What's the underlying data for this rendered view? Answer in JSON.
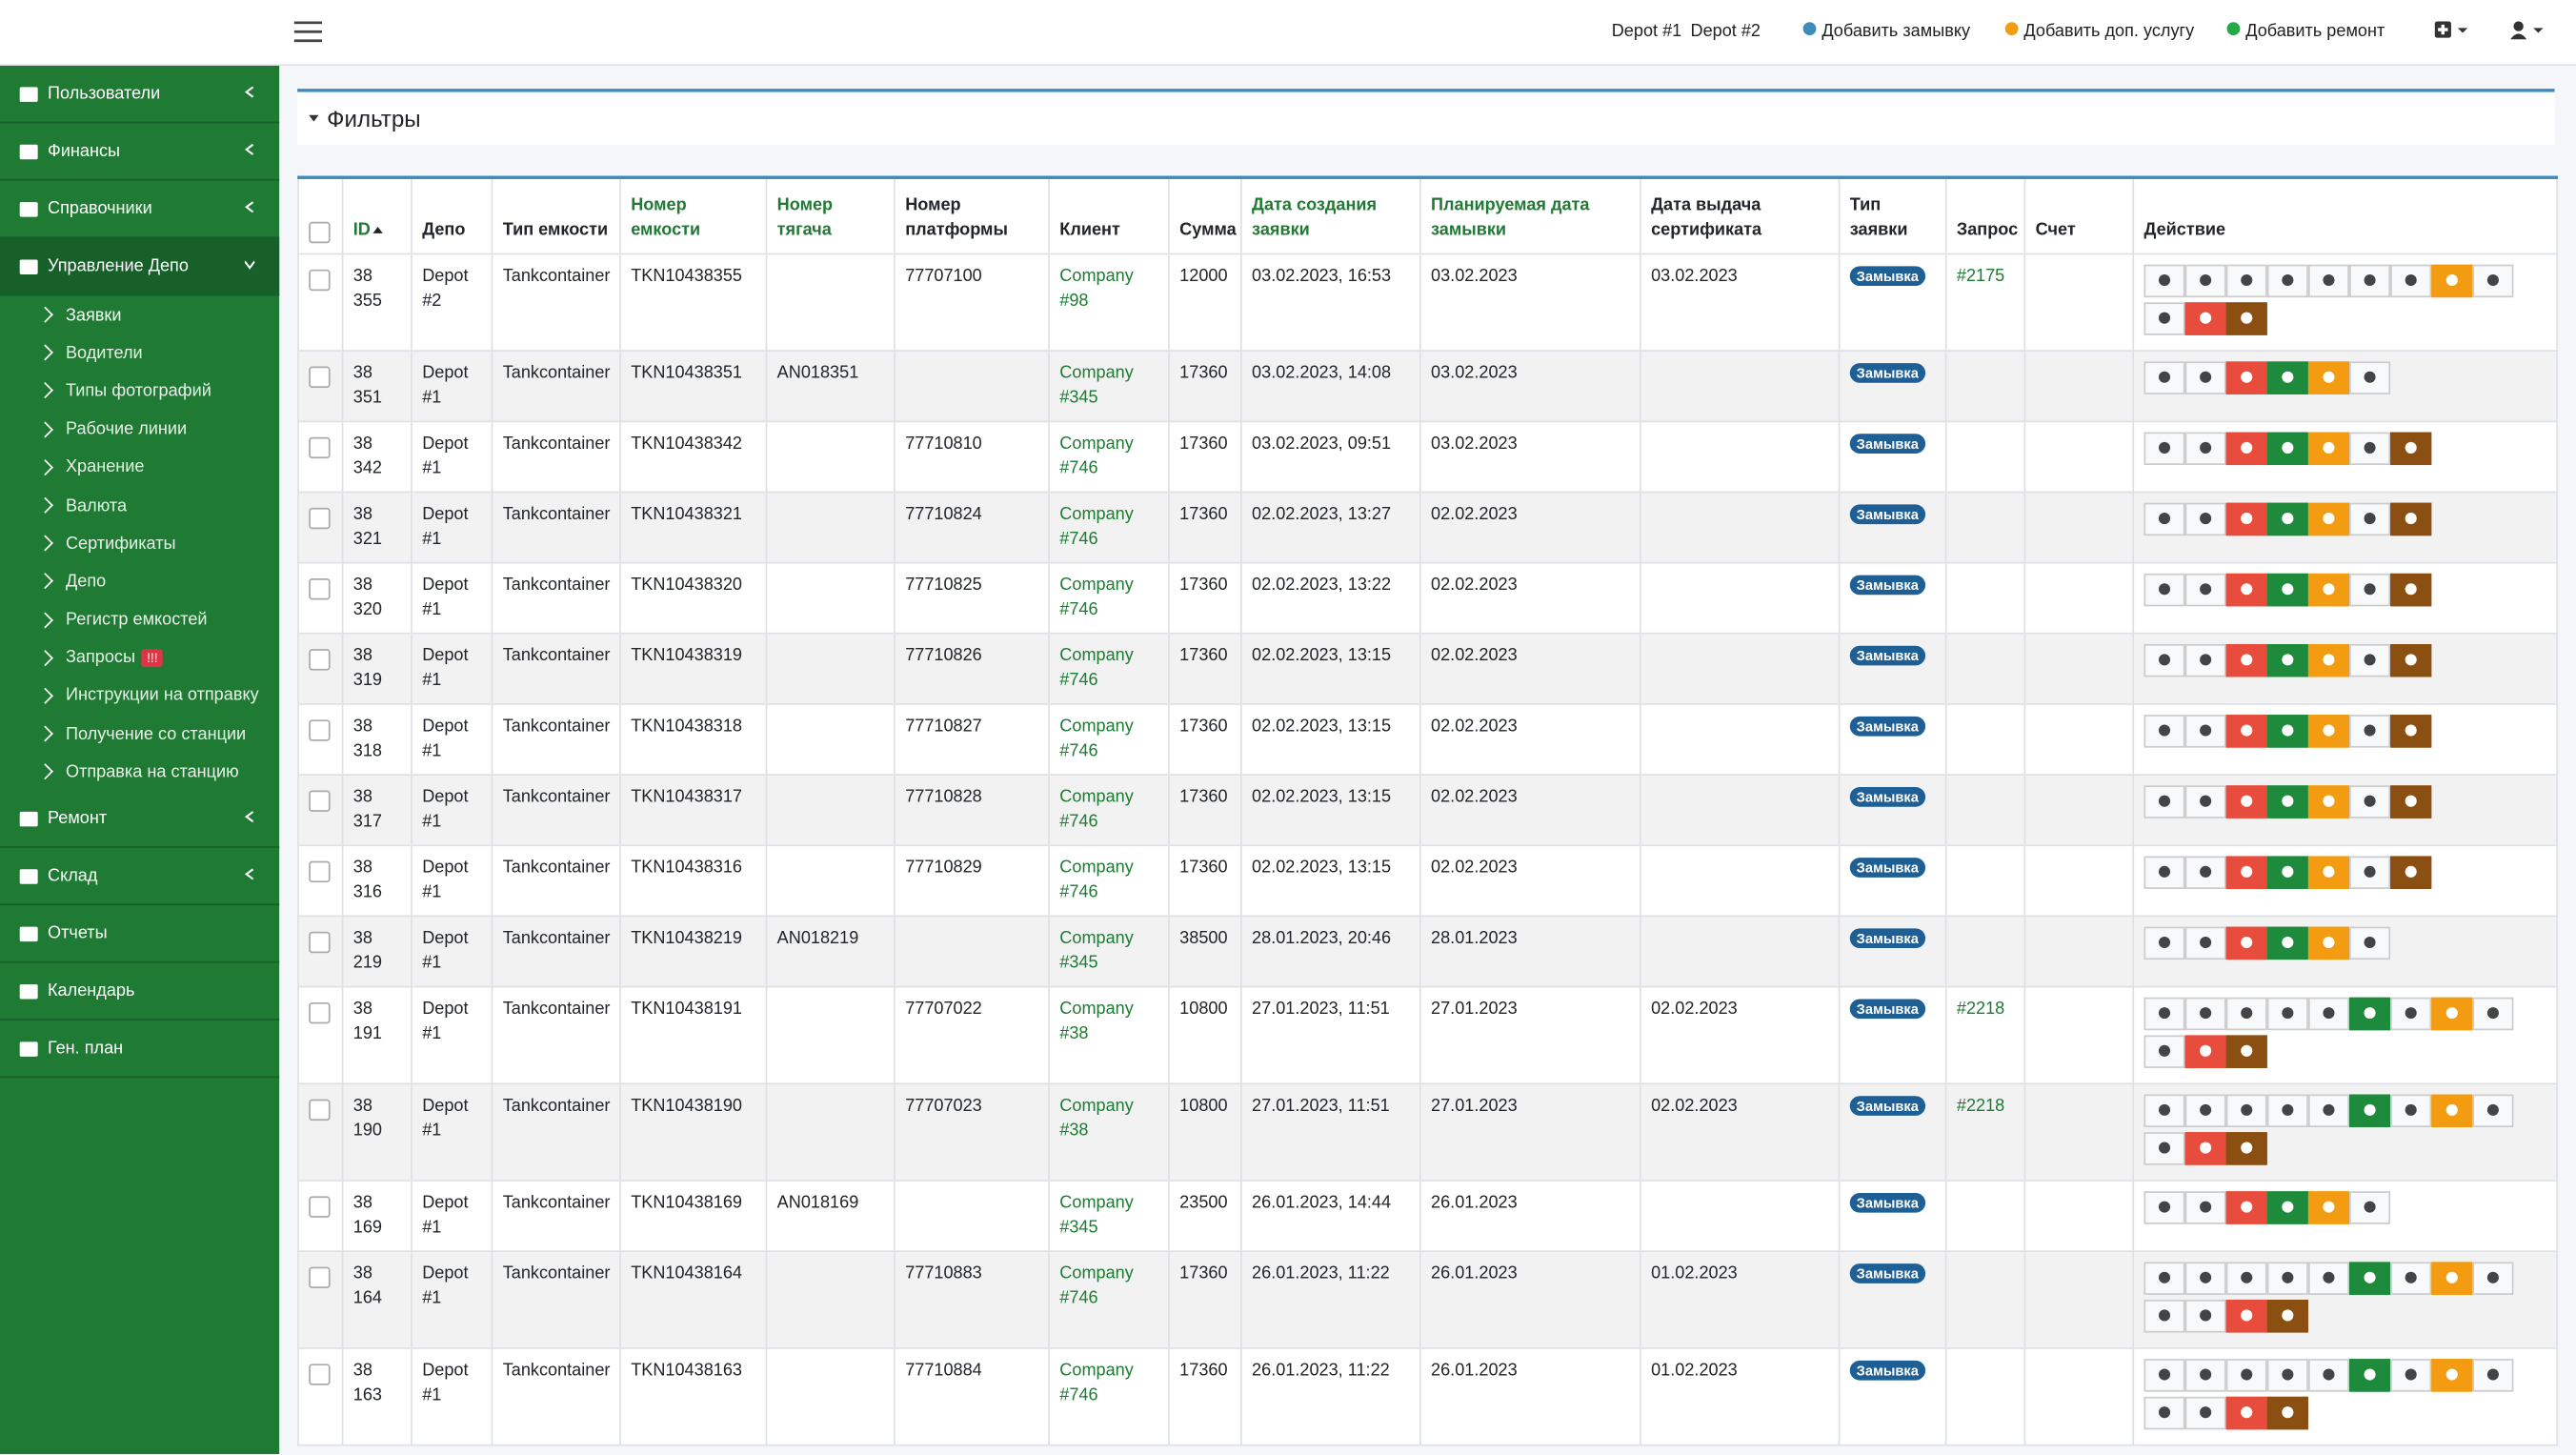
{
  "header": {
    "links": [
      "Depot #1",
      "Depot #2"
    ],
    "actions": [
      "Добавить замывку",
      "Добавить доп. услугу",
      "Добавить ремонт"
    ]
  },
  "sidebar": {
    "items": [
      {
        "label": "Пользователи"
      },
      {
        "label": "Финансы"
      },
      {
        "label": "Справочники"
      },
      {
        "label": "Управление Депо",
        "children": [
          {
            "label": "Заявки"
          },
          {
            "label": "Водители"
          },
          {
            "label": "Типы фотографий"
          },
          {
            "label": "Рабочие линии"
          },
          {
            "label": "Хранение"
          },
          {
            "label": "Валюта"
          },
          {
            "label": "Сертификаты"
          },
          {
            "label": "Депо"
          },
          {
            "label": "Регистр емкостей"
          },
          {
            "label": "Запросы",
            "badge": "!!!"
          },
          {
            "label": "Инструкции на отправку"
          },
          {
            "label": "Получение со станции"
          },
          {
            "label": "Отправка на станцию"
          }
        ]
      },
      {
        "label": "Ремонт"
      },
      {
        "label": "Склад"
      },
      {
        "label": "Отчеты"
      },
      {
        "label": "Календарь"
      },
      {
        "label": "Ген. план"
      }
    ]
  },
  "filters": {
    "title": "Фильтры"
  },
  "table": {
    "columns": [
      {
        "label": "ID",
        "sortable": true
      },
      {
        "label": "Депо"
      },
      {
        "label": "Тип емкости"
      },
      {
        "label": "Номер емкости",
        "sortable": true
      },
      {
        "label": "Номер тягача",
        "sortable": true
      },
      {
        "label": "Номер платформы"
      },
      {
        "label": "Клиент"
      },
      {
        "label": "Сумма"
      },
      {
        "label": "Дата создания заявки",
        "sortable": true
      },
      {
        "label": "Планируемая дата замывки",
        "sortable": true
      },
      {
        "label": "Дата выдача сертификата"
      },
      {
        "label": "Тип заявки"
      },
      {
        "label": "Запрос"
      },
      {
        "label": "Счет"
      },
      {
        "label": "Действие"
      }
    ],
    "rows": [
      [
        "38 355",
        "Depot #2",
        "Tankcontainer",
        "TKN10438355",
        null,
        "77707100",
        "Company #98",
        12000,
        "03.02.2023, 16:53",
        "03.02.2023",
        "03.02.2023",
        "Замывка",
        "#2175",
        null
      ],
      [
        "38 351",
        "Depot #1",
        "Tankcontainer",
        "TKN10438351",
        "AN018351",
        null,
        "Company #345",
        17360,
        "03.02.2023, 14:08",
        "03.02.2023",
        null,
        "Замывка",
        null,
        null
      ],
      [
        "38 342",
        "Depot #1",
        "Tankcontainer",
        "TKN10438342",
        null,
        "77710810",
        "Company #746",
        17360,
        "03.02.2023, 09:51",
        "03.02.2023",
        null,
        "Замывка",
        null,
        null
      ],
      [
        "38 321",
        "Depot #1",
        "Tankcontainer",
        "TKN10438321",
        null,
        "77710824",
        "Company #746",
        17360,
        "02.02.2023, 13:27",
        "02.02.2023",
        null,
        "Замывка",
        null,
        null
      ],
      [
        "38 320",
        "Depot #1",
        "Tankcontainer",
        "TKN10438320",
        null,
        "77710825",
        "Company #746",
        17360,
        "02.02.2023, 13:22",
        "02.02.2023",
        null,
        "Замывка",
        null,
        null
      ],
      [
        "38 319",
        "Depot #1",
        "Tankcontainer",
        "TKN10438319",
        null,
        "77710826",
        "Company #746",
        17360,
        "02.02.2023, 13:15",
        "02.02.2023",
        null,
        "Замывка",
        null,
        null
      ],
      [
        "38 318",
        "Depot #1",
        "Tankcontainer",
        "TKN10438318",
        null,
        "77710827",
        "Company #746",
        17360,
        "02.02.2023, 13:15",
        "02.02.2023",
        null,
        "Замывка",
        null,
        null
      ],
      [
        "38 317",
        "Depot #1",
        "Tankcontainer",
        "TKN10438317",
        null,
        "77710828",
        "Company #746",
        17360,
        "02.02.2023, 13:15",
        "02.02.2023",
        null,
        "Замывка",
        null,
        null
      ],
      [
        "38 316",
        "Depot #1",
        "Tankcontainer",
        "TKN10438316",
        null,
        "77710829",
        "Company #746",
        17360,
        "02.02.2023, 13:15",
        "02.02.2023",
        null,
        "Замывка",
        null,
        null
      ],
      [
        "38 219",
        "Depot #1",
        "Tankcontainer",
        "TKN10438219",
        "AN018219",
        null,
        "Company #345",
        38500,
        "28.01.2023, 20:46",
        "28.01.2023",
        null,
        "Замывка",
        null,
        null
      ],
      [
        "38 191",
        "Depot #1",
        "Tankcontainer",
        "TKN10438191",
        null,
        "77707022",
        "Company #38",
        10800,
        "27.01.2023, 11:51",
        "27.01.2023",
        "02.02.2023",
        "Замывка",
        "#2218",
        null
      ],
      [
        "38 190",
        "Depot #1",
        "Tankcontainer",
        "TKN10438190",
        null,
        "77707023",
        "Company #38",
        10800,
        "27.01.2023, 11:51",
        "27.01.2023",
        "02.02.2023",
        "Замывка",
        "#2218",
        null
      ],
      [
        "38 169",
        "Depot #1",
        "Tankcontainer",
        "TKN10438169",
        "AN018169",
        null,
        "Company #345",
        23500,
        "26.01.2023, 14:44",
        "26.01.2023",
        null,
        "Замывка",
        null,
        null
      ],
      [
        "38 164",
        "Depot #1",
        "Tankcontainer",
        "TKN10438164",
        null,
        "77710883",
        "Company #746",
        17360,
        "26.01.2023, 11:22",
        "26.01.2023",
        "01.02.2023",
        "Замывка",
        null,
        null
      ],
      [
        "38 163",
        "Depot #1",
        "Tankcontainer",
        "TKN10438163",
        null,
        "77710884",
        "Company #746",
        17360,
        "26.01.2023, 11:22",
        "26.01.2023",
        "01.02.2023",
        "Замывка",
        null,
        null
      ]
    ]
  }
}
